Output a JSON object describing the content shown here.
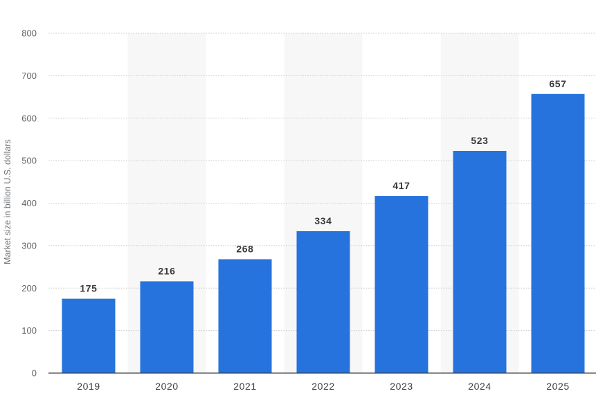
{
  "chart_data": {
    "type": "bar",
    "title": "",
    "xlabel": "",
    "ylabel": "Market size in billion U.S. dollars",
    "categories": [
      "2019",
      "2020",
      "2021",
      "2022",
      "2023",
      "2024",
      "2025"
    ],
    "series": [
      {
        "values": [
          175,
          216,
          268,
          334,
          417,
          523,
          657
        ]
      }
    ],
    "value_labels": [
      "175",
      "216",
      "268",
      "334",
      "417",
      "523",
      "657"
    ],
    "ylim": [
      0,
      800
    ],
    "yticks": [
      0,
      100,
      200,
      300,
      400,
      500,
      600,
      700,
      800
    ],
    "ytick_labels": [
      "0",
      "100",
      "200",
      "300",
      "400",
      "500",
      "600",
      "700",
      "800"
    ],
    "grid": true,
    "alternating_column_bands": true,
    "colors": {
      "bar": "#2673dd",
      "band": "#f7f7f7",
      "grid": "#c8c8c8",
      "axis": "#3c4043"
    }
  }
}
